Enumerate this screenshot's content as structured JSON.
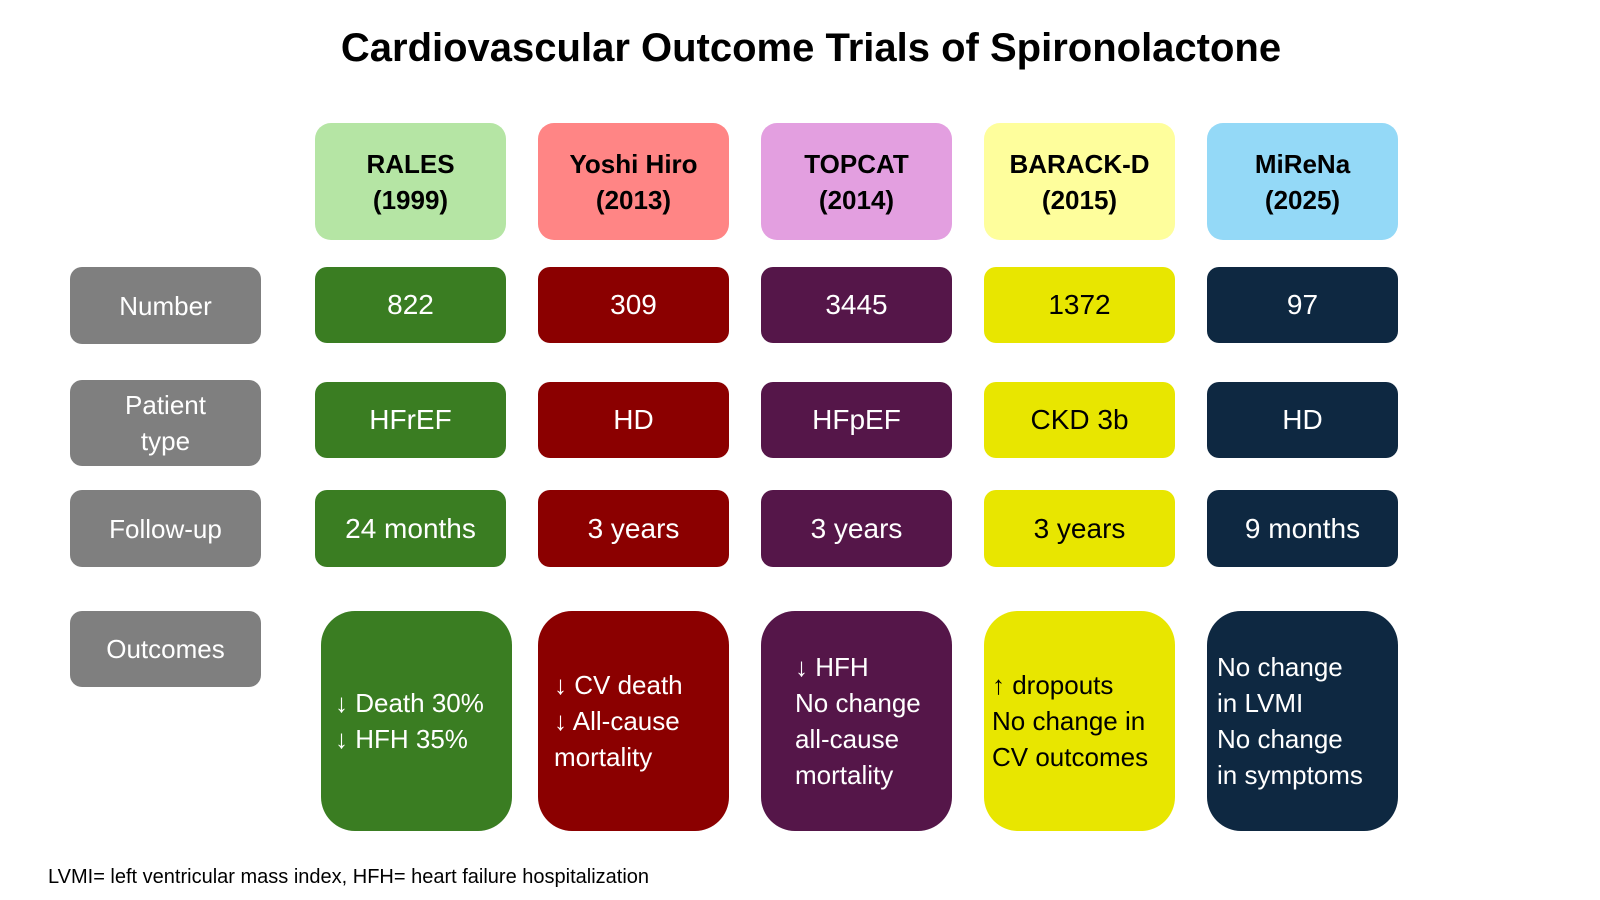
{
  "title": "Cardiovascular Outcome Trials of Spironolactone",
  "row_labels": {
    "number": "Number",
    "patient_type": "Patient\ntype",
    "follow_up": "Follow-up",
    "outcomes": "Outcomes"
  },
  "trials": [
    {
      "name": "RALES",
      "year": "(1999)",
      "number": "822",
      "patient_type": "HFrEF",
      "follow_up": "24 months",
      "outcome": "↓ Death 30%\n↓ HFH 35%",
      "header_color": "#b5e5a4",
      "cell_color": "#3a7d22",
      "text_color": "#ffffff"
    },
    {
      "name": "Yoshi Hiro",
      "year": "(2013)",
      "number": "309",
      "patient_type": "HD",
      "follow_up": "3 years",
      "outcome": "↓ CV death\n↓ All-cause\nmortality",
      "header_color": "#ff8585",
      "cell_color": "#8b0000",
      "text_color": "#ffffff"
    },
    {
      "name": "TOPCAT",
      "year": "(2014)",
      "number": "3445",
      "patient_type": "HFpEF",
      "follow_up": "3 years",
      "outcome": "↓ HFH\nNo change\nall-cause\nmortality",
      "header_color": "#e39fe0",
      "cell_color": "#551649",
      "text_color": "#ffffff"
    },
    {
      "name": "BARACK-D",
      "year": "(2015)",
      "number": "1372",
      "patient_type": "CKD 3b",
      "follow_up": "3 years",
      "outcome": "↑ dropouts\nNo change in\nCV outcomes",
      "header_color": "#fefe9c",
      "cell_color": "#e8e600",
      "text_color": "#000000"
    },
    {
      "name": "MiReNa",
      "year": "(2025)",
      "number": "97",
      "patient_type": "HD",
      "follow_up": "9 months",
      "outcome": "No change\nin LVMI\nNo change\nin symptoms",
      "header_color": "#94d9f7",
      "cell_color": "#0e2841",
      "text_color": "#ffffff"
    }
  ],
  "footnote": "LVMI= left ventricular mass index, HFH= heart failure hospitalization"
}
